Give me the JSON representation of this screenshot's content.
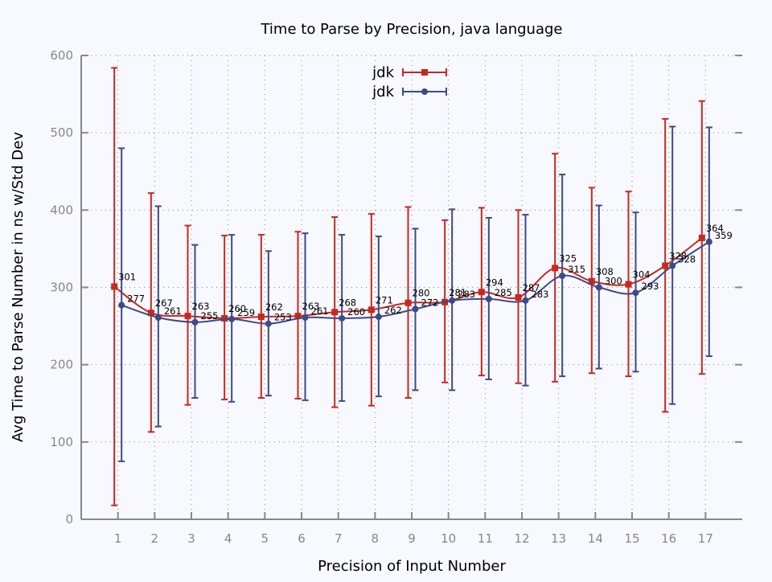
{
  "chart_data": {
    "type": "line",
    "title": "Time to Parse by Precision, java language",
    "xlabel": "Precision of Input Number",
    "ylabel": "Avg Time to Parse Number in ns w/Std Dev",
    "x": [
      1,
      2,
      3,
      4,
      5,
      6,
      7,
      8,
      9,
      10,
      11,
      12,
      13,
      14,
      15,
      16,
      17
    ],
    "xlim": [
      0,
      18
    ],
    "ylim": [
      0,
      600
    ],
    "yticks": [
      0,
      100,
      200,
      300,
      400,
      500,
      600
    ],
    "grid": true,
    "legend_position": "top-center",
    "series": [
      {
        "name": "jdk",
        "color": "#c8281e",
        "marker": "square",
        "values": [
          301,
          267,
          263,
          260,
          262,
          263,
          268,
          271,
          280,
          281,
          294,
          287,
          325,
          308,
          304,
          328,
          364
        ],
        "error_low": [
          18,
          113,
          148,
          155,
          157,
          156,
          145,
          147,
          157,
          177,
          186,
          176,
          178,
          189,
          185,
          139,
          188
        ],
        "error_high": [
          584,
          422,
          380,
          367,
          368,
          372,
          391,
          395,
          404,
          387,
          403,
          400,
          473,
          429,
          424,
          518,
          541
        ],
        "labels": [
          "301",
          "267",
          "263",
          "260",
          "262",
          "263",
          "268",
          "271",
          "280",
          "281",
          "294",
          "287",
          "325",
          "308",
          "304",
          "328",
          "364"
        ]
      },
      {
        "name": "jdk",
        "color": "#3c4b87",
        "marker": "circle",
        "values": [
          277,
          261,
          255,
          259,
          253,
          261,
          260,
          262,
          272,
          283,
          285,
          283,
          315,
          300,
          293,
          328,
          359
        ],
        "error_low": [
          75,
          120,
          157,
          152,
          160,
          154,
          153,
          159,
          167,
          167,
          181,
          173,
          185,
          195,
          191,
          149,
          211
        ],
        "error_high": [
          480,
          405,
          355,
          368,
          347,
          370,
          368,
          366,
          376,
          401,
          390,
          394,
          446,
          406,
          397,
          508,
          507
        ],
        "labels": [
          "277",
          "261",
          "255",
          "259",
          "253",
          "261",
          "260",
          "262",
          "272",
          "283",
          "285",
          "283",
          "315",
          "300",
          "293",
          "328",
          "359"
        ]
      }
    ]
  }
}
